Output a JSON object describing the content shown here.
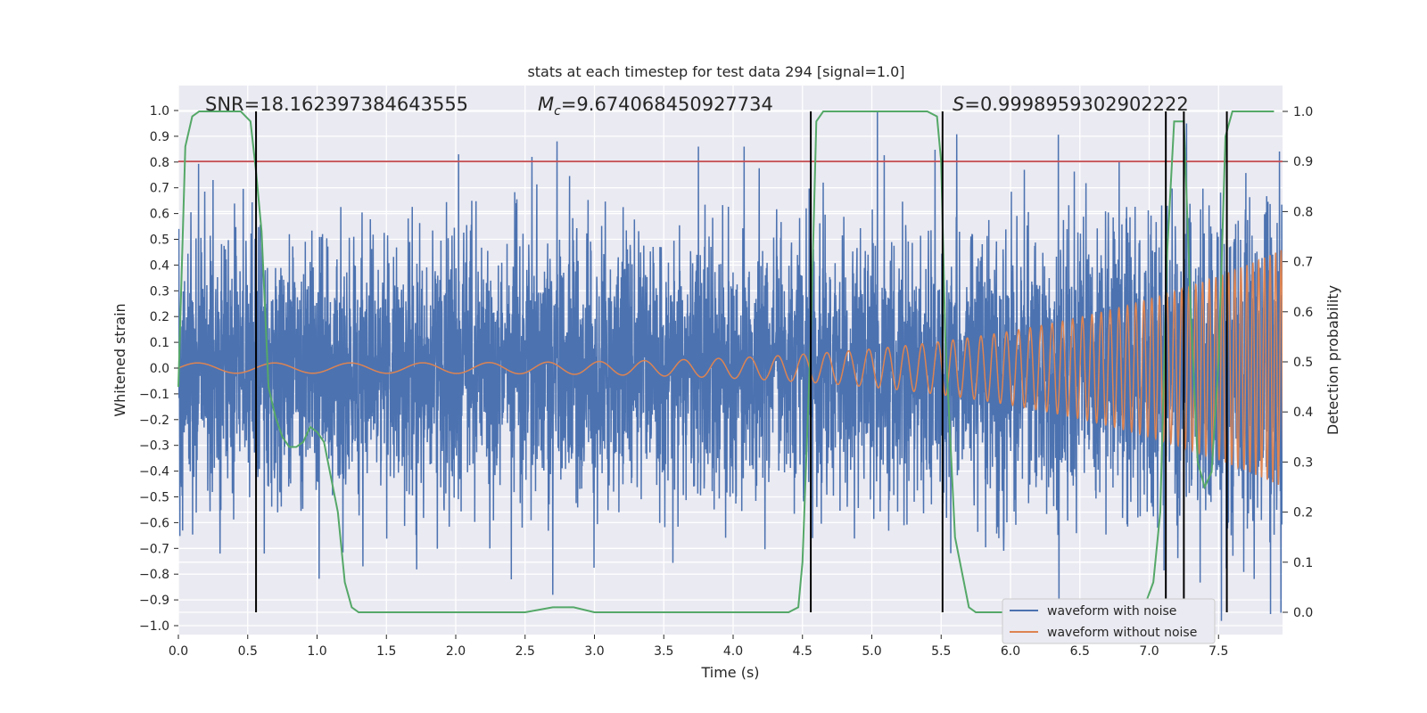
{
  "chart_data": {
    "type": "line",
    "title": "stats at each timestep for test data 294 [signal=1.0]",
    "xlabel": "Time (s)",
    "ylabel": "Whitened strain",
    "ylabel_right": "Detection probability",
    "xlim": [
      0.0,
      8.0
    ],
    "ylim": [
      -1.05,
      1.05
    ],
    "ylim_right": [
      -0.025,
      1.025
    ],
    "xticks": [
      "0.0",
      "0.5",
      "1.0",
      "1.5",
      "2.0",
      "2.5",
      "3.0",
      "3.5",
      "4.0",
      "4.5",
      "5.0",
      "5.5",
      "6.0",
      "6.5",
      "7.0",
      "7.5"
    ],
    "yticks": [
      "1.0",
      "0.9",
      "0.8",
      "0.7",
      "0.6",
      "0.5",
      "0.4",
      "0.3",
      "0.2",
      "0.1",
      "0.0",
      "−0.1",
      "−0.2",
      "−0.3",
      "−0.4",
      "−0.5",
      "−0.6",
      "−0.7",
      "−0.8",
      "−0.9",
      "−1.0"
    ],
    "yticks_right": [
      "1.0",
      "0.9",
      "0.8",
      "0.7",
      "0.6",
      "0.5",
      "0.4",
      "0.3",
      "0.2",
      "0.1",
      "0.0"
    ],
    "grid": true,
    "legend_position": "bottom-right",
    "annotations": {
      "snr": "SNR=18.162397384643555",
      "mc": "=9.674068450927734",
      "s": "=0.9998959302902222"
    },
    "threshold": 0.9,
    "detection_times": [
      0.56,
      4.56,
      5.51,
      7.12,
      7.25,
      7.56
    ],
    "series": [
      {
        "name": "waveform with noise",
        "color": "#4c72b0",
        "envelope_base": 0.3,
        "spikes": [
          {
            "x": 0.25,
            "y": 0.73
          },
          {
            "x": 0.3,
            "y": -0.72
          },
          {
            "x": 0.62,
            "y": -0.72
          },
          {
            "x": 2.02,
            "y": 0.83
          },
          {
            "x": 2.55,
            "y": 0.82
          },
          {
            "x": 2.73,
            "y": 0.88
          },
          {
            "x": 2.7,
            "y": -0.88
          },
          {
            "x": 2.4,
            "y": -0.82
          },
          {
            "x": 1.33,
            "y": -0.77
          },
          {
            "x": 3.75,
            "y": 0.86
          },
          {
            "x": 4.08,
            "y": 0.86
          },
          {
            "x": 5.04,
            "y": 1.0
          },
          {
            "x": 4.65,
            "y": 0.72
          },
          {
            "x": 5.51,
            "y": -0.79
          },
          {
            "x": 6.1,
            "y": 0.77
          },
          {
            "x": 7.95,
            "y": -0.95
          },
          {
            "x": 7.27,
            "y": 0.95
          }
        ]
      },
      {
        "name": "waveform without noise",
        "color": "#dd8452",
        "amp_start": 0.02,
        "amp_end": 0.47,
        "freq_start": 18,
        "freq_end": 260
      },
      {
        "name": "detection probability",
        "color": "#55a868",
        "axis": "right",
        "points": [
          [
            0.0,
            0.45
          ],
          [
            0.05,
            0.93
          ],
          [
            0.1,
            0.99
          ],
          [
            0.15,
            1.0
          ],
          [
            0.45,
            1.0
          ],
          [
            0.52,
            0.98
          ],
          [
            0.56,
            0.88
          ],
          [
            0.6,
            0.76
          ],
          [
            0.65,
            0.45
          ],
          [
            0.7,
            0.39
          ],
          [
            0.75,
            0.35
          ],
          [
            0.8,
            0.33
          ],
          [
            0.85,
            0.33
          ],
          [
            0.9,
            0.34
          ],
          [
            0.95,
            0.37
          ],
          [
            1.0,
            0.36
          ],
          [
            1.05,
            0.34
          ],
          [
            1.1,
            0.27
          ],
          [
            1.15,
            0.2
          ],
          [
            1.2,
            0.06
          ],
          [
            1.25,
            0.01
          ],
          [
            1.3,
            0.0
          ],
          [
            2.5,
            0.0
          ],
          [
            2.7,
            0.01
          ],
          [
            2.85,
            0.01
          ],
          [
            3.0,
            0.0
          ],
          [
            4.4,
            0.0
          ],
          [
            4.47,
            0.01
          ],
          [
            4.5,
            0.1
          ],
          [
            4.56,
            0.55
          ],
          [
            4.6,
            0.98
          ],
          [
            4.65,
            1.0
          ],
          [
            5.4,
            1.0
          ],
          [
            5.47,
            0.99
          ],
          [
            5.5,
            0.9
          ],
          [
            5.53,
            0.55
          ],
          [
            5.6,
            0.15
          ],
          [
            5.7,
            0.01
          ],
          [
            5.75,
            0.0
          ],
          [
            6.95,
            0.0
          ],
          [
            7.03,
            0.06
          ],
          [
            7.08,
            0.2
          ],
          [
            7.13,
            0.72
          ],
          [
            7.18,
            0.98
          ],
          [
            7.25,
            0.98
          ],
          [
            7.3,
            0.6
          ],
          [
            7.35,
            0.3
          ],
          [
            7.4,
            0.25
          ],
          [
            7.45,
            0.28
          ],
          [
            7.5,
            0.5
          ],
          [
            7.55,
            0.95
          ],
          [
            7.6,
            1.0
          ],
          [
            7.9,
            1.0
          ]
        ]
      }
    ]
  }
}
